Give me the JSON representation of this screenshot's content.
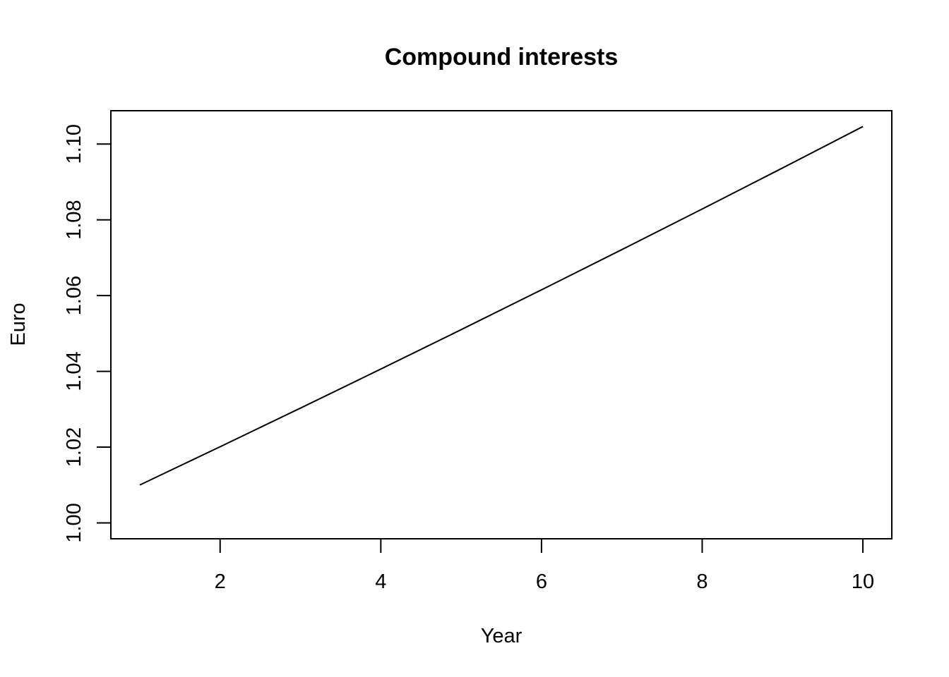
{
  "chart_data": {
    "type": "line",
    "title": "Compound interests",
    "xlabel": "Year",
    "ylabel": "Euro",
    "x": [
      1,
      2,
      3,
      4,
      5,
      6,
      7,
      8,
      9,
      10
    ],
    "series": [
      {
        "values": [
          1.01,
          1.0201,
          1.030301,
          1.040604,
          1.05101,
          1.06152,
          1.072135,
          1.082857,
          1.093685,
          1.104622
        ]
      }
    ],
    "xlim": [
      0.64,
      10.36
    ],
    "ylim": [
      0.9958,
      1.1088
    ],
    "x_ticks": [
      2,
      4,
      6,
      8,
      10
    ],
    "x_tick_labels": [
      "2",
      "4",
      "6",
      "8",
      "10"
    ],
    "y_ticks": [
      1.0,
      1.02,
      1.04,
      1.06,
      1.08,
      1.1
    ],
    "y_tick_labels": [
      "1.00",
      "1.02",
      "1.04",
      "1.06",
      "1.08",
      "1.10"
    ],
    "grid": false,
    "legend": "none",
    "line_color": "#000000",
    "background_color": "#ffffff"
  }
}
